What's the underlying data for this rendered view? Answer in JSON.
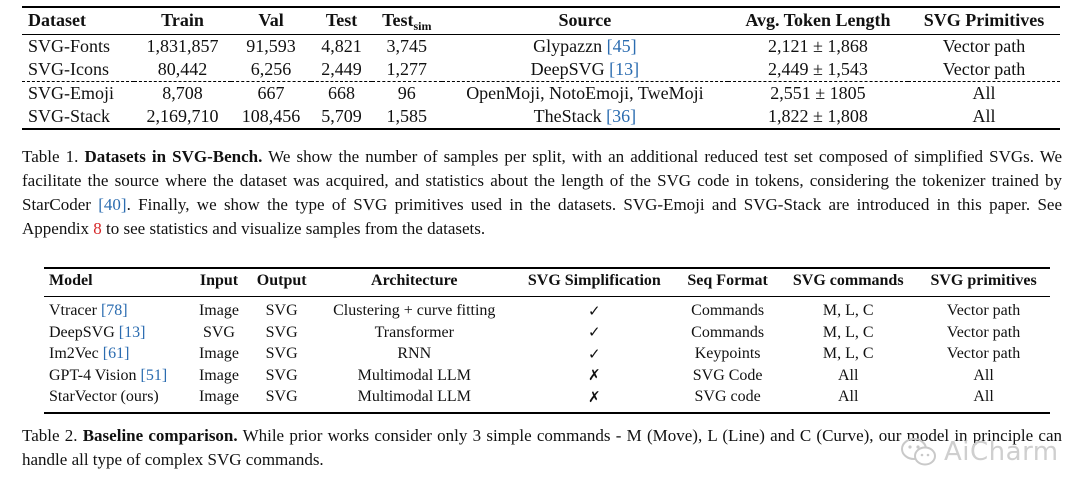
{
  "table1": {
    "headers": {
      "dataset": "Dataset",
      "train": "Train",
      "val": "Val",
      "test": "Test",
      "test_sim_main": "Test",
      "test_sim_sub": "sim",
      "source": "Source",
      "avg_token": "Avg. Token Length",
      "primitives": "SVG Primitives"
    },
    "rows": [
      {
        "dataset": "SVG-Fonts",
        "train": "1,831,857",
        "val": "91,593",
        "test": "4,821",
        "test_sim": "3,745",
        "source_text": "Glypazzn",
        "source_cite": "[45]",
        "avg": "2,121 ± 1,868",
        "primitives": "Vector path"
      },
      {
        "dataset": "SVG-Icons",
        "train": "80,442",
        "val": "6,256",
        "test": "2,449",
        "test_sim": "1,277",
        "source_text": "DeepSVG",
        "source_cite": "[13]",
        "avg": "2,449 ± 1,543",
        "primitives": "Vector path"
      },
      {
        "dataset": "SVG-Emoji",
        "train": "8,708",
        "val": "667",
        "test": "668",
        "test_sim": "96",
        "source_text": "OpenMoji, NotoEmoji, TweMoji",
        "source_cite": "",
        "avg": "2,551 ± 1805",
        "primitives": "All"
      },
      {
        "dataset": "SVG-Stack",
        "train": "2,169,710",
        "val": "108,456",
        "test": "5,709",
        "test_sim": "1,585",
        "source_text": "TheStack",
        "source_cite": "[36]",
        "avg": "1,822 ± 1,808",
        "primitives": "All"
      }
    ]
  },
  "caption1": {
    "label": "Table 1.",
    "bold": "Datasets in SVG-Bench.",
    "p1": "We show the number of samples per split, with an additional reduced test set composed of simplified SVGs. We facilitate the source where the dataset was acquired, and statistics about the length of the SVG code in tokens, considering the tokenizer trained by StarCoder",
    "cite1": "[40]",
    "p2": ". Finally, we show the type of SVG primitives used in the datasets. SVG-Emoji and SVG-Stack are introduced in this paper. See Appendix",
    "appendix": "8",
    "p3": "to see statistics and visualize samples from the datasets."
  },
  "table2": {
    "headers": [
      "Model",
      "Input",
      "Output",
      "Architecture",
      "SVG Simplification",
      "Seq Format",
      "SVG commands",
      "SVG primitives"
    ],
    "rows": [
      {
        "model": "Vtracer",
        "cite": "[78]",
        "input": "Image",
        "output": "SVG",
        "arch": "Clustering + curve fitting",
        "simp": "✓",
        "seq": "Commands",
        "cmds": "M, L, C",
        "prims": "Vector path"
      },
      {
        "model": "DeepSVG",
        "cite": "[13]",
        "input": "SVG",
        "output": "SVG",
        "arch": "Transformer",
        "simp": "✓",
        "seq": "Commands",
        "cmds": "M, L, C",
        "prims": "Vector path"
      },
      {
        "model": "Im2Vec",
        "cite": "[61]",
        "input": "Image",
        "output": "SVG",
        "arch": "RNN",
        "simp": "✓",
        "seq": "Keypoints",
        "cmds": "M, L, C",
        "prims": "Vector path"
      },
      {
        "model": "GPT-4 Vision",
        "cite": "[51]",
        "input": "Image",
        "output": "SVG",
        "arch": "Multimodal LLM",
        "simp": "✗",
        "seq": "SVG Code",
        "cmds": "All",
        "prims": "All"
      },
      {
        "model": "StarVector (ours)",
        "cite": "",
        "input": "Image",
        "output": "SVG",
        "arch": "Multimodal LLM",
        "simp": "✗",
        "seq": "SVG code",
        "cmds": "All",
        "prims": "All"
      }
    ]
  },
  "caption2": {
    "label": "Table 2.",
    "bold": "Baseline comparison.",
    "text": "While prior works consider only 3 simple commands - M (Move), L (Line) and C (Curve), our model in principle can handle all type of complex SVG commands."
  },
  "watermark": {
    "text": "AiCharm"
  }
}
